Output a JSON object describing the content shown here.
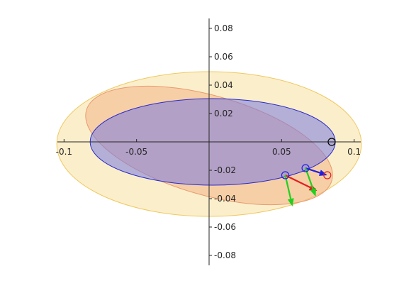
{
  "chart_data": {
    "type": "scatter",
    "title": "",
    "xlabel": "",
    "ylabel": "",
    "xlim": [
      -0.1075,
      0.1075
    ],
    "ylim": [
      -0.085,
      0.085
    ],
    "grid": false,
    "legend": "none",
    "axes_location": "origin",
    "x_ticks": [
      -0.1,
      -0.05,
      0.05,
      0.1
    ],
    "x_tick_labels": [
      "-0.1",
      "-0.05",
      "0.05",
      "0.1"
    ],
    "y_ticks": [
      0.08,
      0.06,
      0.04,
      0.02,
      -0.02,
      -0.04,
      -0.06,
      -0.08
    ],
    "y_tick_labels": [
      "0.08",
      "0.06",
      "0.04",
      "0.02",
      "-0.02",
      "-0.04",
      "-0.06",
      "-0.08"
    ],
    "ellipses": [
      {
        "id": "outer-yellow",
        "center": [
          0.0,
          -0.0015
        ],
        "semi_axes": [
          0.105,
          0.051
        ],
        "rotation_deg": 0,
        "fill": "#f7dc8c",
        "fill_opacity": 0.45,
        "stroke": "#f0c860"
      },
      {
        "id": "orange-tilted",
        "center": [
          0.0,
          -0.0025
        ],
        "semi_axes": [
          0.088,
          0.035
        ],
        "rotation_deg": -16,
        "fill": "#f4b48a",
        "fill_opacity": 0.55,
        "stroke": "#e89a70"
      },
      {
        "id": "blue",
        "center": [
          0.0025,
          0.0
        ],
        "semi_axes": [
          0.0845,
          0.0305
        ],
        "rotation_deg": 0,
        "fill": "#7a7ae0",
        "fill_opacity": 0.55,
        "stroke": "#2a2ac8"
      }
    ],
    "points": [
      {
        "id": "black-point",
        "x": 0.0845,
        "y": 0.0,
        "color": "#000000"
      },
      {
        "id": "blue-point-1",
        "x": 0.0525,
        "y": -0.0235,
        "color": "#2020e0"
      },
      {
        "id": "blue-point-2",
        "x": 0.0665,
        "y": -0.0185,
        "color": "#2020e0"
      },
      {
        "id": "red-point",
        "x": 0.0815,
        "y": -0.0235,
        "color": "#e02020"
      }
    ],
    "vectors": [
      {
        "id": "blue-arrow",
        "from": [
          0.0665,
          -0.0185
        ],
        "to": [
          0.0815,
          -0.0235
        ],
        "color": "#2020e0"
      },
      {
        "id": "red-arrow",
        "from": [
          0.0525,
          -0.0235
        ],
        "to": [
          0.0745,
          -0.0345
        ],
        "color": "#e02020"
      },
      {
        "id": "green-arrow-1",
        "from": [
          0.0525,
          -0.0235
        ],
        "to": [
          0.0575,
          -0.0455
        ],
        "color": "#20d020"
      },
      {
        "id": "green-arrow-2",
        "from": [
          0.0665,
          -0.0185
        ],
        "to": [
          0.0735,
          -0.0385
        ],
        "color": "#20d020"
      }
    ]
  }
}
